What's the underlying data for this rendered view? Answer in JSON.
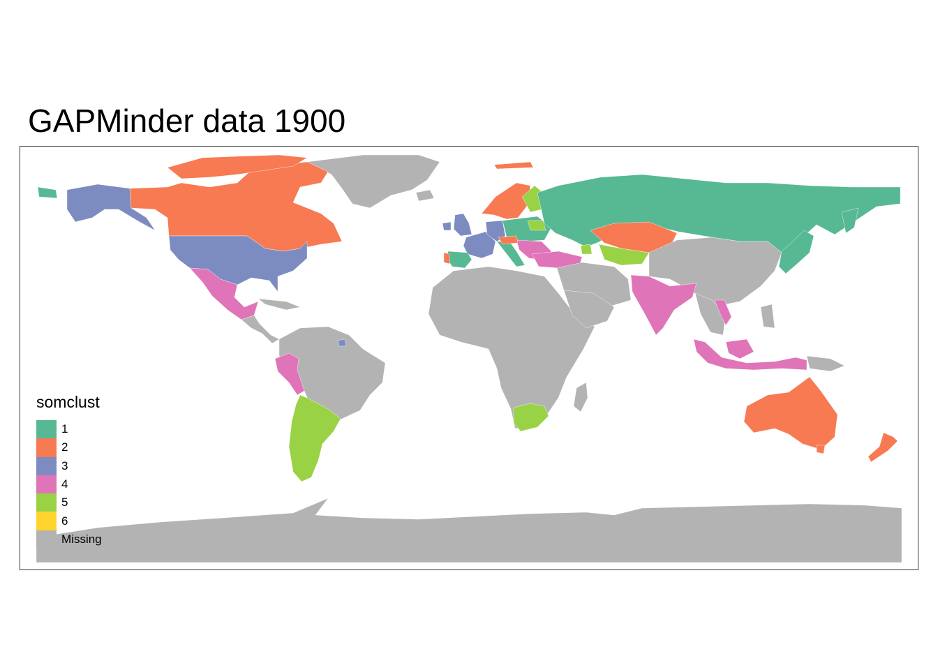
{
  "title": "GAPMinder data 1900",
  "legend": {
    "title": "somclust",
    "items": [
      {
        "label": "1",
        "color": "#57B994"
      },
      {
        "label": "2",
        "color": "#F77A52"
      },
      {
        "label": "3",
        "color": "#7D8CC0"
      },
      {
        "label": "4",
        "color": "#E074B8"
      },
      {
        "label": "5",
        "color": "#9AD245"
      },
      {
        "label": "6",
        "color": "#FFD42E"
      },
      {
        "label": "Missing",
        "color": "#B3B3B3"
      }
    ]
  },
  "colors": {
    "c1": "#57B994",
    "c2": "#F77A52",
    "c3": "#7D8CC0",
    "c4": "#E074B8",
    "c5": "#9AD245",
    "c6": "#FFD42E",
    "missing": "#B3B3B3",
    "frame": "#333333"
  }
}
